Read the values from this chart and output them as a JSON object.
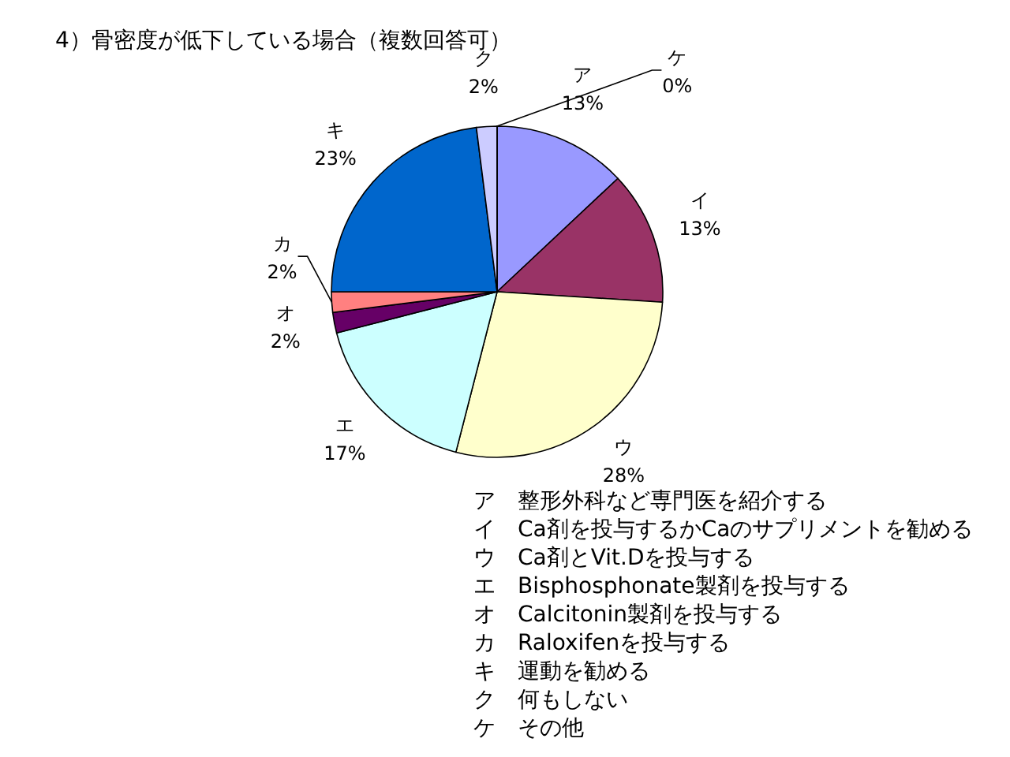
{
  "chart_data": {
    "type": "pie",
    "title": "4）骨密度が低下している場合（複数回答可）",
    "categories": [
      "ア",
      "イ",
      "ウ",
      "エ",
      "オ",
      "カ",
      "キ",
      "ク",
      "ケ"
    ],
    "values": [
      13,
      13,
      28,
      17,
      2,
      2,
      23,
      2,
      0
    ],
    "value_labels": [
      "13%",
      "13%",
      "28%",
      "17%",
      "2%",
      "2%",
      "23%",
      "2%",
      "0%"
    ],
    "colors": [
      "#9999ff",
      "#993366",
      "#ffffcc",
      "#ccffff",
      "#660066",
      "#ff8080",
      "#0066cc",
      "#ccccff",
      "#000080"
    ],
    "annotations": [
      "ア　整形外科など専門医を紹介する",
      "イ　Ca剤を投与するかCaのサプリメントを勧める",
      "ウ　Ca剤とVit.Dを投与する",
      "エ　Bisphosphonate製剤を投与する",
      "オ　Calcitonin製剤を投与する",
      "カ　Raloxifenを投与する",
      "キ　運動を勧める",
      "ク　何もしない",
      "ケ　その他"
    ]
  }
}
